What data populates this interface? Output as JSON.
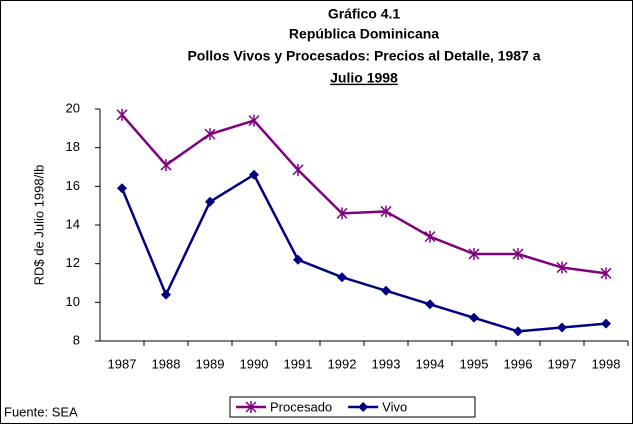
{
  "chart_data": {
    "type": "line",
    "title": [
      "Gráfico 4.1",
      "República Dominicana",
      "Pollos Vivos y Procesados: Precios al Detalle, 1987 a",
      "Julio 1998"
    ],
    "y_label": "RD$ de Julio 1998/lb",
    "note": "Fuente: SEA",
    "categories": [
      "1987",
      "1988",
      "1989",
      "1990",
      "1991",
      "1992",
      "1993",
      "1994",
      "1995",
      "1996",
      "1997",
      "1998"
    ],
    "series": [
      {
        "name": "Procesado",
        "color": "#800080",
        "marker": "star",
        "values": [
          19.7,
          17.1,
          18.7,
          19.4,
          16.85,
          14.6,
          14.7,
          13.4,
          12.5,
          12.5,
          11.8,
          11.5
        ]
      },
      {
        "name": "Vivo",
        "color": "#000080",
        "marker": "diamond",
        "values": [
          15.9,
          10.4,
          15.2,
          16.6,
          12.2,
          11.3,
          10.6,
          9.9,
          9.2,
          8.5,
          8.7,
          8.9
        ]
      }
    ],
    "ylim": [
      8,
      20
    ],
    "yticks": [
      8,
      10,
      12,
      14,
      16,
      18,
      20
    ],
    "grid": false,
    "legend": "bottom"
  }
}
